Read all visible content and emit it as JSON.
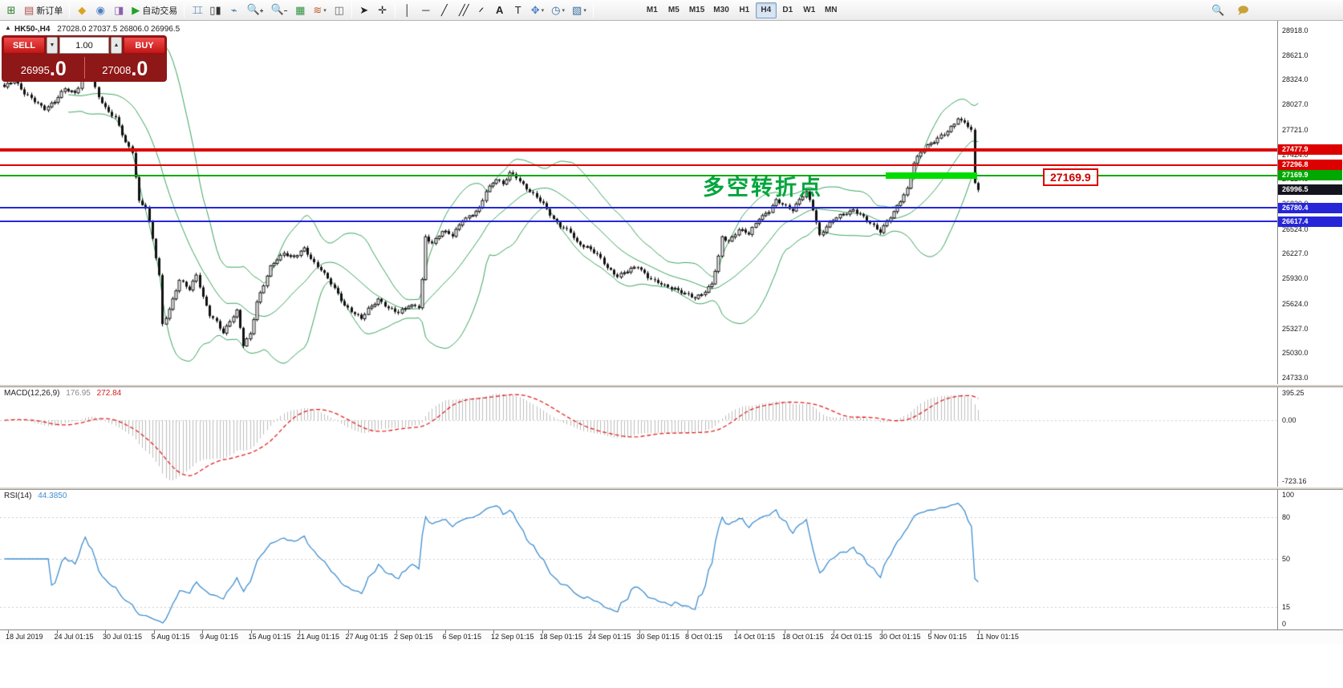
{
  "toolbar": {
    "new_order_label": "新订单",
    "autotrade_label": "自动交易",
    "timeframes": [
      "M1",
      "M5",
      "M15",
      "M30",
      "H1",
      "H4",
      "D1",
      "W1",
      "MN"
    ],
    "active_timeframe": "H4",
    "icons": [
      "new-chart",
      "new-order",
      "market",
      "signals",
      "terminal",
      "autotrading",
      "bars-chart",
      "candles-chart",
      "line-chart",
      "zoom-in",
      "zoom-out",
      "grid",
      "indicators",
      "tile-windows",
      "cursor",
      "crosshair",
      "vertical-line",
      "horizontal-line",
      "trendline",
      "equidistant-channel",
      "fibonacci",
      "text",
      "text-label",
      "shapes",
      "periods-clock",
      "templates",
      "search",
      "chat"
    ]
  },
  "trade_panel": {
    "sell_label": "SELL",
    "buy_label": "BUY",
    "volume": "1.00",
    "sell_price_main": "26995",
    "sell_price_big": ".0",
    "buy_price_main": "27008",
    "buy_price_big": ".0"
  },
  "chart": {
    "title": "HK50-,H4",
    "ohlc": "27028.0 27037.5 26806.0 26996.5",
    "annotation": "多空转折点",
    "level_callout": "27169.9",
    "y_axis_labels": [
      "28918.0",
      "28621.0",
      "28324.0",
      "28027.0",
      "27721.0",
      "27424.0",
      "27127.0",
      "26830.0",
      "26524.0",
      "26227.0",
      "25930.0",
      "25624.0",
      "25327.0",
      "25030.0",
      "24733.0"
    ],
    "levels": [
      {
        "price": 27477.9,
        "label": "27477.9",
        "color": "#dd0000",
        "width": 4
      },
      {
        "price": 27296.8,
        "label": "27296.8",
        "color": "#dd0000",
        "width": 2
      },
      {
        "price": 27169.9,
        "label": "27169.9",
        "color": "#00a800",
        "width": 2
      },
      {
        "price": 26780.4,
        "label": "26780.4",
        "color": "#2626d8",
        "width": 2
      },
      {
        "price": 26617.4,
        "label": "26617.4",
        "color": "#2626d8",
        "width": 2
      }
    ],
    "current_price": {
      "price": 26996.5,
      "label": "26996.5",
      "color": "#14141e"
    },
    "time_axis": [
      "18 Jul 2019",
      "24 Jul 01:15",
      "30 Jul 01:15",
      "5 Aug 01:15",
      "9 Aug 01:15",
      "15 Aug 01:15",
      "21 Aug 01:15",
      "27 Aug 01:15",
      "2 Sep 01:15",
      "6 Sep 01:15",
      "12 Sep 01:15",
      "18 Sep 01:15",
      "24 Sep 01:15",
      "30 Sep 01:15",
      "8 Oct 01:15",
      "14 Oct 01:15",
      "18 Oct 01:15",
      "24 Oct 01:15",
      "30 Oct 01:15",
      "5 Nov 01:15",
      "11 Nov 01:15"
    ]
  },
  "macd": {
    "label": "MACD(12,26,9)",
    "value_main": "176.95",
    "value_signal": "272.84",
    "axis_max": "395.25",
    "axis_zero": "0.00",
    "axis_min": "-723.16"
  },
  "rsi": {
    "label": "RSI(14)",
    "value": "44.3850",
    "axis": [
      "100",
      "80",
      "50",
      "15",
      "0"
    ]
  },
  "chart_data": {
    "type": "candlestick",
    "symbol": "HK50-",
    "timeframe": "H4",
    "open": 27028.0,
    "high": 27037.5,
    "low": 26806.0,
    "close": 26996.5,
    "bar_count": 290,
    "last_close": 26996.5,
    "y_range": {
      "top": 28918.0,
      "bottom": 24733.0
    },
    "indicators": [
      {
        "name": "Bollinger Bands",
        "period": 20,
        "deviation": 2,
        "color": "#3aa35c"
      },
      {
        "name": "MACD",
        "fast": 12,
        "slow": 26,
        "signal": 9,
        "current": 176.95,
        "signal_current": 272.84,
        "scale": [
          395.25,
          0.0,
          -723.16
        ]
      },
      {
        "name": "RSI",
        "period": 14,
        "current": 44.385,
        "levels": [
          80,
          50,
          15
        ]
      }
    ],
    "price_path": [
      [
        0,
        28230
      ],
      [
        3,
        28330
      ],
      [
        6,
        28160
      ],
      [
        9,
        28060
      ],
      [
        12,
        27980
      ],
      [
        15,
        28060
      ],
      [
        18,
        28210
      ],
      [
        21,
        28170
      ],
      [
        24,
        28390
      ],
      [
        26,
        28310
      ],
      [
        28,
        28120
      ],
      [
        30,
        27990
      ],
      [
        33,
        27860
      ],
      [
        36,
        27560
      ],
      [
        38,
        27460
      ],
      [
        40,
        26860
      ],
      [
        42,
        26790
      ],
      [
        44,
        26400
      ],
      [
        46,
        25960
      ],
      [
        47,
        25380
      ],
      [
        49,
        25560
      ],
      [
        52,
        25900
      ],
      [
        55,
        25800
      ],
      [
        57,
        25980
      ],
      [
        59,
        25700
      ],
      [
        61,
        25480
      ],
      [
        63,
        25400
      ],
      [
        65,
        25280
      ],
      [
        67,
        25420
      ],
      [
        69,
        25530
      ],
      [
        71,
        25120
      ],
      [
        73,
        25260
      ],
      [
        75,
        25650
      ],
      [
        77,
        25850
      ],
      [
        79,
        26060
      ],
      [
        81,
        26160
      ],
      [
        83,
        26240
      ],
      [
        86,
        26180
      ],
      [
        89,
        26280
      ],
      [
        92,
        26120
      ],
      [
        94,
        26040
      ],
      [
        96,
        25920
      ],
      [
        99,
        25740
      ],
      [
        101,
        25610
      ],
      [
        104,
        25500
      ],
      [
        106,
        25440
      ],
      [
        108,
        25560
      ],
      [
        111,
        25680
      ],
      [
        114,
        25560
      ],
      [
        117,
        25520
      ],
      [
        120,
        25610
      ],
      [
        123,
        25580
      ],
      [
        124,
        25900
      ],
      [
        125,
        26420
      ],
      [
        127,
        26360
      ],
      [
        130,
        26500
      ],
      [
        133,
        26440
      ],
      [
        136,
        26640
      ],
      [
        139,
        26700
      ],
      [
        141,
        26760
      ],
      [
        143,
        26980
      ],
      [
        146,
        27140
      ],
      [
        148,
        27060
      ],
      [
        150,
        27190
      ],
      [
        152,
        27150
      ],
      [
        155,
        27020
      ],
      [
        158,
        26900
      ],
      [
        160,
        26820
      ],
      [
        163,
        26650
      ],
      [
        165,
        26560
      ],
      [
        168,
        26480
      ],
      [
        170,
        26360
      ],
      [
        173,
        26310
      ],
      [
        176,
        26210
      ],
      [
        179,
        26060
      ],
      [
        182,
        25960
      ],
      [
        185,
        26010
      ],
      [
        188,
        26080
      ],
      [
        191,
        25950
      ],
      [
        193,
        25890
      ],
      [
        196,
        25840
      ],
      [
        199,
        25810
      ],
      [
        202,
        25740
      ],
      [
        205,
        25690
      ],
      [
        208,
        25780
      ],
      [
        210,
        25860
      ],
      [
        212,
        26180
      ],
      [
        213,
        26420
      ],
      [
        215,
        26380
      ],
      [
        218,
        26520
      ],
      [
        221,
        26460
      ],
      [
        224,
        26660
      ],
      [
        227,
        26740
      ],
      [
        229,
        26860
      ],
      [
        231,
        26820
      ],
      [
        234,
        26760
      ],
      [
        236,
        26880
      ],
      [
        238,
        26960
      ],
      [
        240,
        26760
      ],
      [
        242,
        26450
      ],
      [
        244,
        26560
      ],
      [
        247,
        26660
      ],
      [
        250,
        26720
      ],
      [
        252,
        26760
      ],
      [
        254,
        26700
      ],
      [
        256,
        26620
      ],
      [
        258,
        26560
      ],
      [
        260,
        26500
      ],
      [
        262,
        26620
      ],
      [
        264,
        26720
      ],
      [
        266,
        26860
      ],
      [
        268,
        27010
      ],
      [
        270,
        27330
      ],
      [
        272,
        27450
      ],
      [
        274,
        27520
      ],
      [
        276,
        27580
      ],
      [
        278,
        27660
      ],
      [
        280,
        27700
      ],
      [
        282,
        27790
      ],
      [
        283,
        27850
      ],
      [
        285,
        27810
      ],
      [
        286,
        27760
      ],
      [
        287,
        27720
      ],
      [
        288,
        27080
      ],
      [
        289,
        26996.5
      ]
    ]
  }
}
